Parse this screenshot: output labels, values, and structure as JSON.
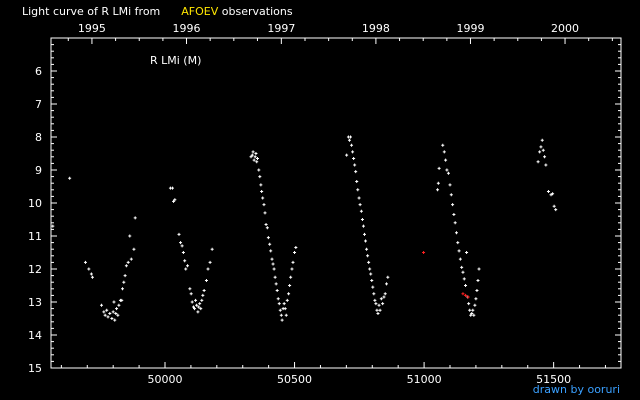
{
  "title": {
    "part1": "Light curve of R LMi from",
    "source": "AFOEV",
    "part2": "observations"
  },
  "credit": "drawn by ooruri",
  "colors": {
    "background": "#000000",
    "axis": "#ffffff",
    "points": "#ffffff",
    "highlight": "#ffe600",
    "outliers": "#ff2020",
    "credit": "#3aa0ff"
  },
  "chart_data": {
    "type": "scatter",
    "star_label": "R LMi (M)",
    "xlim": [
      49560,
      51760
    ],
    "ylim": [
      15,
      5
    ],
    "y_inverted": true,
    "x_ticks": [
      50000,
      50500,
      51000,
      51500
    ],
    "y_ticks": [
      6,
      7,
      8,
      9,
      10,
      11,
      12,
      13,
      14,
      15
    ],
    "year_ticks": [
      {
        "label": "1995",
        "x": 49718
      },
      {
        "label": "1996",
        "x": 50083
      },
      {
        "label": "1997",
        "x": 50449
      },
      {
        "label": "1998",
        "x": 50814
      },
      {
        "label": "1999",
        "x": 51179
      },
      {
        "label": "2000",
        "x": 51544
      }
    ],
    "series": [
      {
        "color": "#ffffff",
        "points": [
          [
            49567,
            10.7
          ],
          [
            49632,
            9.25
          ],
          [
            49693,
            11.8
          ],
          [
            49706,
            12.0
          ],
          [
            49716,
            12.15
          ],
          [
            49720,
            12.25
          ],
          [
            49755,
            13.1
          ],
          [
            49764,
            13.3
          ],
          [
            49769,
            13.4
          ],
          [
            49775,
            13.25
          ],
          [
            49780,
            13.45
          ],
          [
            49787,
            13.35
          ],
          [
            49795,
            13.5
          ],
          [
            49800,
            13.3
          ],
          [
            49803,
            13.0
          ],
          [
            49806,
            13.55
          ],
          [
            49810,
            13.35
          ],
          [
            49813,
            13.2
          ],
          [
            49818,
            13.4
          ],
          [
            49822,
            13.1
          ],
          [
            49828,
            12.95
          ],
          [
            49833,
            12.95
          ],
          [
            49836,
            12.6
          ],
          [
            49841,
            12.4
          ],
          [
            49846,
            12.2
          ],
          [
            49851,
            11.9
          ],
          [
            49858,
            11.8
          ],
          [
            49864,
            11.0
          ],
          [
            49870,
            11.7
          ],
          [
            49880,
            11.4
          ],
          [
            49885,
            10.45
          ],
          [
            50021,
            9.55
          ],
          [
            50029,
            9.55
          ],
          [
            50033,
            9.95
          ],
          [
            50038,
            9.9
          ],
          [
            50054,
            10.95
          ],
          [
            50060,
            11.2
          ],
          [
            50066,
            11.3
          ],
          [
            50071,
            11.5
          ],
          [
            50076,
            11.75
          ],
          [
            50080,
            12.0
          ],
          [
            50087,
            11.9
          ],
          [
            50096,
            12.6
          ],
          [
            50101,
            12.75
          ],
          [
            50105,
            13.0
          ],
          [
            50110,
            13.15
          ],
          [
            50114,
            13.2
          ],
          [
            50118,
            12.95
          ],
          [
            50122,
            13.1
          ],
          [
            50127,
            13.3
          ],
          [
            50130,
            13.15
          ],
          [
            50134,
            13.05
          ],
          [
            50138,
            13.2
          ],
          [
            50142,
            12.95
          ],
          [
            50146,
            12.8
          ],
          [
            50151,
            12.65
          ],
          [
            50160,
            12.35
          ],
          [
            50166,
            12.0
          ],
          [
            50174,
            11.8
          ],
          [
            50182,
            11.4
          ],
          [
            50332,
            8.6
          ],
          [
            50337,
            8.55
          ],
          [
            50340,
            8.45
          ],
          [
            50344,
            8.7
          ],
          [
            50348,
            8.6
          ],
          [
            50351,
            8.5
          ],
          [
            50354,
            8.75
          ],
          [
            50357,
            8.65
          ],
          [
            50362,
            9.0
          ],
          [
            50366,
            9.2
          ],
          [
            50370,
            9.45
          ],
          [
            50373,
            9.65
          ],
          [
            50377,
            9.85
          ],
          [
            50382,
            10.05
          ],
          [
            50386,
            10.3
          ],
          [
            50390,
            10.65
          ],
          [
            50395,
            10.75
          ],
          [
            50399,
            11.05
          ],
          [
            50404,
            11.25
          ],
          [
            50408,
            11.45
          ],
          [
            50413,
            11.7
          ],
          [
            50417,
            11.85
          ],
          [
            50421,
            12.0
          ],
          [
            50425,
            12.25
          ],
          [
            50429,
            12.45
          ],
          [
            50433,
            12.65
          ],
          [
            50437,
            12.9
          ],
          [
            50441,
            13.05
          ],
          [
            50445,
            13.25
          ],
          [
            50449,
            13.4
          ],
          [
            50452,
            13.55
          ],
          [
            50456,
            13.2
          ],
          [
            50460,
            13.05
          ],
          [
            50464,
            13.2
          ],
          [
            50468,
            13.4
          ],
          [
            50472,
            12.95
          ],
          [
            50477,
            12.75
          ],
          [
            50481,
            12.5
          ],
          [
            50485,
            12.25
          ],
          [
            50490,
            12.0
          ],
          [
            50494,
            11.8
          ],
          [
            50500,
            11.5
          ],
          [
            50505,
            11.35
          ],
          [
            50701,
            8.55
          ],
          [
            50708,
            8.0
          ],
          [
            50712,
            8.1
          ],
          [
            50716,
            8.0
          ],
          [
            50720,
            8.25
          ],
          [
            50724,
            8.45
          ],
          [
            50728,
            8.65
          ],
          [
            50732,
            8.85
          ],
          [
            50736,
            9.05
          ],
          [
            50740,
            9.35
          ],
          [
            50744,
            9.6
          ],
          [
            50749,
            9.85
          ],
          [
            50753,
            10.05
          ],
          [
            50758,
            10.25
          ],
          [
            50762,
            10.5
          ],
          [
            50766,
            10.7
          ],
          [
            50770,
            10.95
          ],
          [
            50774,
            11.15
          ],
          [
            50778,
            11.4
          ],
          [
            50782,
            11.6
          ],
          [
            50786,
            11.8
          ],
          [
            50790,
            12.0
          ],
          [
            50794,
            12.15
          ],
          [
            50798,
            12.35
          ],
          [
            50802,
            12.55
          ],
          [
            50806,
            12.75
          ],
          [
            50810,
            12.95
          ],
          [
            50814,
            13.05
          ],
          [
            50818,
            13.25
          ],
          [
            50822,
            13.35
          ],
          [
            50826,
            13.1
          ],
          [
            50830,
            13.25
          ],
          [
            50835,
            12.9
          ],
          [
            50840,
            13.05
          ],
          [
            50845,
            12.85
          ],
          [
            50850,
            12.75
          ],
          [
            50855,
            12.45
          ],
          [
            50860,
            12.25
          ],
          [
            51052,
            9.6
          ],
          [
            51058,
            8.95
          ],
          [
            51055,
            9.4
          ],
          [
            51072,
            8.25
          ],
          [
            51078,
            8.45
          ],
          [
            51083,
            8.7
          ],
          [
            51088,
            9.0
          ],
          [
            51094,
            9.1
          ],
          [
            51100,
            9.45
          ],
          [
            51105,
            9.75
          ],
          [
            51110,
            10.05
          ],
          [
            51115,
            10.35
          ],
          [
            51120,
            10.6
          ],
          [
            51125,
            10.9
          ],
          [
            51130,
            11.2
          ],
          [
            51135,
            11.45
          ],
          [
            51140,
            11.7
          ],
          [
            51145,
            11.95
          ],
          [
            51150,
            12.1
          ],
          [
            51155,
            12.3
          ],
          [
            51160,
            12.5
          ],
          [
            51164,
            11.5
          ],
          [
            51168,
            12.85
          ],
          [
            51172,
            13.05
          ],
          [
            51176,
            13.25
          ],
          [
            51180,
            13.4
          ],
          [
            51184,
            13.35
          ],
          [
            51188,
            13.25
          ],
          [
            51192,
            13.4
          ],
          [
            51196,
            13.1
          ],
          [
            51200,
            12.9
          ],
          [
            51204,
            12.65
          ],
          [
            51208,
            12.35
          ],
          [
            51212,
            12.0
          ],
          [
            51440,
            8.75
          ],
          [
            51446,
            8.45
          ],
          [
            51451,
            8.3
          ],
          [
            51456,
            8.1
          ],
          [
            51460,
            8.4
          ],
          [
            51465,
            8.6
          ],
          [
            51470,
            8.85
          ],
          [
            51480,
            9.65
          ],
          [
            51490,
            9.75
          ],
          [
            51496,
            9.72
          ],
          [
            51502,
            10.1
          ],
          [
            51508,
            10.2
          ]
        ]
      },
      {
        "color": "#ff2020",
        "points": [
          [
            50998,
            11.5
          ],
          [
            51150,
            12.75
          ],
          [
            51160,
            12.8
          ],
          [
            51170,
            12.85
          ]
        ]
      }
    ]
  }
}
